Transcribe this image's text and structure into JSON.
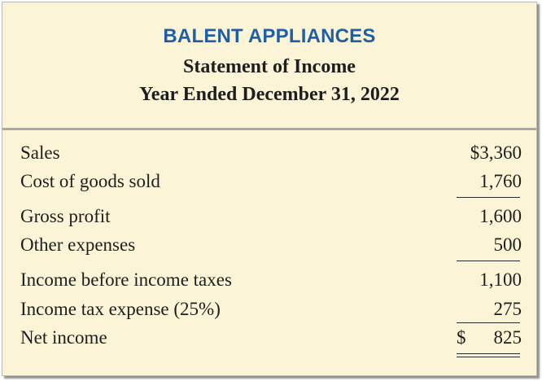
{
  "header": {
    "company": "BALENT APPLIANCES",
    "title": "Statement of Income",
    "period": "Year Ended December 31, 2022"
  },
  "rows": [
    {
      "label": "Sales",
      "amount": "$3,360"
    },
    {
      "label": "Cost of goods sold",
      "amount": "1,760"
    },
    {
      "label": "Gross profit",
      "amount": "1,600"
    },
    {
      "label": "Other expenses",
      "amount": "500"
    },
    {
      "label": "Income before income taxes",
      "amount": "1,100"
    },
    {
      "label": "Income tax expense (25%)",
      "amount": "275"
    },
    {
      "label": "Net income",
      "currency": "$",
      "amount": "825"
    }
  ],
  "colors": {
    "background": "#fbf4d6",
    "company": "#1f5fa8",
    "text": "#1e1e1e"
  }
}
